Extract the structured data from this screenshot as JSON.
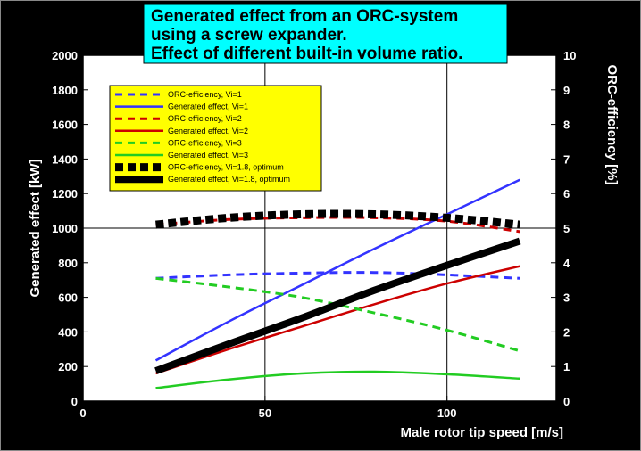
{
  "chart_data": {
    "type": "line",
    "title_lines": [
      "Generated effect from an ORC-system",
      "using a screw expander.",
      "Effect of different built-in volume ratio."
    ],
    "xlabel": "Male rotor tip speed [m/s]",
    "ylabel": "Generated effect [kW]",
    "y2label": "ORC-efficiency [%]",
    "xlim": [
      0,
      130
    ],
    "ylim": [
      0,
      2000
    ],
    "y2lim": [
      0,
      10
    ],
    "xticks": [
      0,
      50,
      100
    ],
    "yticks": [
      0,
      200,
      400,
      600,
      800,
      1000,
      1200,
      1400,
      1600,
      1800,
      2000
    ],
    "y2ticks": [
      0,
      1,
      2,
      3,
      4,
      5,
      6,
      7,
      8,
      9,
      10
    ],
    "grid": true,
    "legend_position": "top-left",
    "series": [
      {
        "name": "ORC-efficiency, Vi=1",
        "axis": "right",
        "color": "#3333ff",
        "style": "dashed",
        "x": [
          20,
          40,
          60,
          80,
          100,
          120
        ],
        "y": [
          3.55,
          3.65,
          3.7,
          3.72,
          3.65,
          3.55
        ]
      },
      {
        "name": "Generated effect, Vi=1",
        "axis": "left",
        "color": "#3333ff",
        "style": "solid",
        "x": [
          20,
          40,
          60,
          80,
          100,
          120
        ],
        "y": [
          235,
          460,
          670,
          880,
          1080,
          1280
        ]
      },
      {
        "name": "ORC-efficiency, Vi=2",
        "axis": "right",
        "color": "#cc0000",
        "style": "dashed",
        "x": [
          20,
          40,
          60,
          80,
          100,
          120
        ],
        "y": [
          5.1,
          5.25,
          5.3,
          5.3,
          5.2,
          4.9
        ]
      },
      {
        "name": "Generated effect, Vi=2",
        "axis": "left",
        "color": "#cc0000",
        "style": "solid",
        "x": [
          20,
          40,
          60,
          80,
          100,
          120
        ],
        "y": [
          160,
          300,
          430,
          560,
          680,
          780
        ]
      },
      {
        "name": "ORC-efficiency, Vi=3",
        "axis": "right",
        "color": "#22cc22",
        "style": "dashed",
        "x": [
          20,
          40,
          60,
          80,
          100,
          120
        ],
        "y": [
          3.55,
          3.3,
          3.0,
          2.55,
          2.05,
          1.45
        ]
      },
      {
        "name": "Generated effect, Vi=3",
        "axis": "left",
        "color": "#22cc22",
        "style": "solid",
        "x": [
          20,
          40,
          60,
          80,
          100,
          120
        ],
        "y": [
          75,
          125,
          160,
          170,
          155,
          130
        ]
      },
      {
        "name": "ORC-efficiency, Vi=1.8, optimum",
        "axis": "right",
        "color": "#000000",
        "style": "dashed-thick",
        "x": [
          20,
          40,
          60,
          80,
          100,
          120
        ],
        "y": [
          5.1,
          5.3,
          5.4,
          5.4,
          5.3,
          5.1
        ]
      },
      {
        "name": "Generated effect, Vi=1.8, optimum",
        "axis": "left",
        "color": "#000000",
        "style": "solid-thick",
        "x": [
          20,
          40,
          60,
          80,
          100,
          120
        ],
        "y": [
          175,
          330,
          480,
          640,
          785,
          925
        ]
      }
    ]
  },
  "colors": {
    "background": "#ffffff",
    "title_box": "#00ffff",
    "legend_box": "#ffff00",
    "frame": "#000000"
  }
}
